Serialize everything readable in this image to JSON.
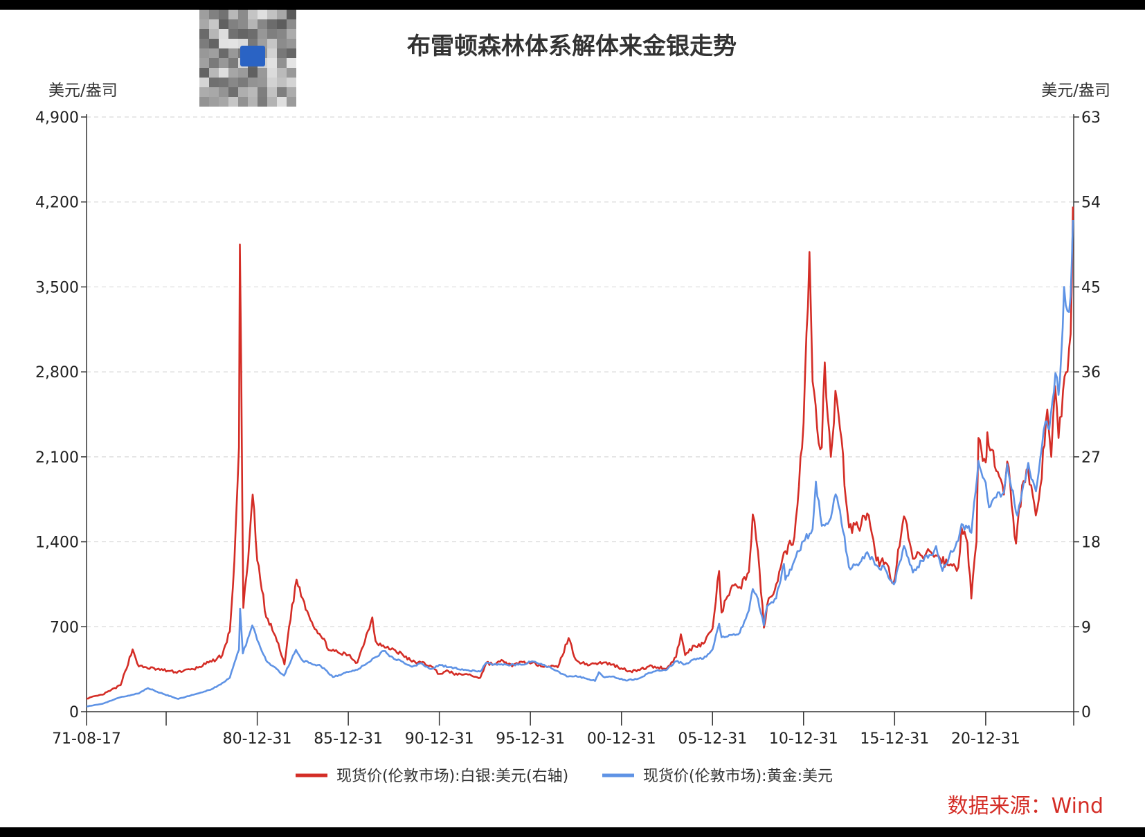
{
  "chart_data": {
    "type": "line",
    "title": "布雷顿森林体系解体来金银走势",
    "left_axis": {
      "unit": "美元/盎司",
      "ylim": [
        0,
        4900
      ],
      "ticks": [
        "0",
        "700",
        "1,400",
        "2,100",
        "2,800",
        "3,500",
        "4,200",
        "4,900"
      ],
      "tick_values": [
        0,
        700,
        1400,
        2100,
        2800,
        3500,
        4200,
        4900
      ]
    },
    "right_axis": {
      "unit": "美元/盎司",
      "ylim": [
        0,
        63
      ],
      "ticks": [
        "0",
        "9",
        "18",
        "27",
        "36",
        "45",
        "54",
        "63"
      ],
      "tick_values": [
        0,
        9,
        18,
        27,
        36,
        45,
        54,
        63
      ]
    },
    "x_axis": {
      "start": "1971-08-17",
      "end": "2025-10-31",
      "tick_labels": [
        "71-08-17",
        "",
        "80-12-31",
        "85-12-31",
        "90-12-31",
        "95-12-31",
        "00-12-31",
        "05-12-31",
        "10-12-31",
        "15-12-31",
        "20-12-31"
      ],
      "tick_dates": [
        "1971-08-17",
        "1975-12-31",
        "1980-12-31",
        "1985-12-31",
        "1990-12-31",
        "1995-12-31",
        "2000-12-31",
        "2005-12-31",
        "2010-12-31",
        "2015-12-31",
        "2020-12-31"
      ]
    },
    "grid": "horizontal-dashed",
    "legend_placement": "bottom-center",
    "series": [
      {
        "name": "现货价(伦敦市场):白银:美元(右轴)",
        "axis": "right",
        "color": "#d42d26",
        "points": [
          [
            "1971-08-17",
            1.4
          ],
          [
            "1972-06-30",
            1.8
          ],
          [
            "1973-06-30",
            2.8
          ],
          [
            "1974-02-26",
            6.6
          ],
          [
            "1974-06-30",
            4.8
          ],
          [
            "1975-06-30",
            4.5
          ],
          [
            "1976-06-30",
            4.2
          ],
          [
            "1977-06-30",
            4.5
          ],
          [
            "1978-06-30",
            5.3
          ],
          [
            "1979-01-31",
            6.0
          ],
          [
            "1979-06-30",
            8.5
          ],
          [
            "1979-09-30",
            16.0
          ],
          [
            "1979-12-31",
            28.0
          ],
          [
            "1980-01-18",
            49.5
          ],
          [
            "1980-02-15",
            35.0
          ],
          [
            "1980-03-27",
            11.0
          ],
          [
            "1980-06-30",
            16.0
          ],
          [
            "1980-09-30",
            23.0
          ],
          [
            "1980-12-31",
            16.0
          ],
          [
            "1981-06-30",
            10.0
          ],
          [
            "1981-12-31",
            8.0
          ],
          [
            "1982-06-30",
            5.0
          ],
          [
            "1982-09-30",
            9.0
          ],
          [
            "1983-02-28",
            14.0
          ],
          [
            "1983-06-30",
            12.0
          ],
          [
            "1983-12-31",
            9.5
          ],
          [
            "1984-06-30",
            8.0
          ],
          [
            "1984-12-31",
            6.5
          ],
          [
            "1985-06-30",
            6.2
          ],
          [
            "1985-12-31",
            6.0
          ],
          [
            "1986-06-30",
            5.2
          ],
          [
            "1987-04-27",
            10.0
          ],
          [
            "1987-06-30",
            7.5
          ],
          [
            "1987-12-31",
            6.8
          ],
          [
            "1988-06-30",
            6.6
          ],
          [
            "1988-12-31",
            6.0
          ],
          [
            "1989-06-30",
            5.3
          ],
          [
            "1989-12-31",
            5.2
          ],
          [
            "1990-06-30",
            4.9
          ],
          [
            "1990-12-31",
            4.0
          ],
          [
            "1991-06-30",
            4.3
          ],
          [
            "1991-12-31",
            3.9
          ],
          [
            "1992-06-30",
            4.0
          ],
          [
            "1992-12-31",
            3.7
          ],
          [
            "1993-03-31",
            3.6
          ],
          [
            "1993-07-31",
            5.2
          ],
          [
            "1993-12-31",
            5.0
          ],
          [
            "1994-06-30",
            5.4
          ],
          [
            "1994-12-31",
            4.8
          ],
          [
            "1995-06-30",
            5.3
          ],
          [
            "1995-12-31",
            5.1
          ],
          [
            "1996-06-30",
            5.0
          ],
          [
            "1996-12-31",
            4.8
          ],
          [
            "1997-06-30",
            4.7
          ],
          [
            "1998-02-05",
            7.8
          ],
          [
            "1998-06-30",
            5.5
          ],
          [
            "1998-12-31",
            5.0
          ],
          [
            "1999-06-30",
            5.1
          ],
          [
            "1999-12-31",
            5.2
          ],
          [
            "2000-06-30",
            5.0
          ],
          [
            "2000-12-31",
            4.6
          ],
          [
            "2001-06-30",
            4.3
          ],
          [
            "2001-12-31",
            4.4
          ],
          [
            "2002-06-30",
            4.8
          ],
          [
            "2002-12-31",
            4.7
          ],
          [
            "2003-06-30",
            4.6
          ],
          [
            "2003-12-31",
            5.8
          ],
          [
            "2004-04-05",
            8.2
          ],
          [
            "2004-06-30",
            6.0
          ],
          [
            "2004-12-31",
            7.0
          ],
          [
            "2005-06-30",
            7.2
          ],
          [
            "2005-12-31",
            8.8
          ],
          [
            "2006-05-12",
            14.9
          ],
          [
            "2006-06-30",
            10.5
          ],
          [
            "2006-12-31",
            13.0
          ],
          [
            "2007-06-30",
            13.2
          ],
          [
            "2007-12-31",
            14.8
          ],
          [
            "2008-03-17",
            20.9
          ],
          [
            "2008-06-30",
            17.0
          ],
          [
            "2008-10-27",
            8.9
          ],
          [
            "2008-12-31",
            11.3
          ],
          [
            "2009-06-30",
            13.5
          ],
          [
            "2009-12-31",
            17.0
          ],
          [
            "2010-06-30",
            18.5
          ],
          [
            "2010-12-31",
            30.6
          ],
          [
            "2011-04-28",
            48.7
          ],
          [
            "2011-06-30",
            35.0
          ],
          [
            "2011-09-30",
            30.0
          ],
          [
            "2011-12-31",
            28.0
          ],
          [
            "2012-02-29",
            37.0
          ],
          [
            "2012-06-30",
            27.0
          ],
          [
            "2012-09-30",
            34.0
          ],
          [
            "2012-12-31",
            30.0
          ],
          [
            "2013-06-30",
            19.5
          ],
          [
            "2013-12-31",
            19.5
          ],
          [
            "2014-06-30",
            21.0
          ],
          [
            "2014-12-31",
            16.0
          ],
          [
            "2015-06-30",
            15.8
          ],
          [
            "2015-12-14",
            13.7
          ],
          [
            "2016-07-05",
            20.7
          ],
          [
            "2016-12-31",
            16.2
          ],
          [
            "2017-06-30",
            16.5
          ],
          [
            "2017-12-31",
            16.9
          ],
          [
            "2018-06-30",
            16.2
          ],
          [
            "2018-12-31",
            15.5
          ],
          [
            "2019-06-30",
            15.3
          ],
          [
            "2019-09-04",
            19.5
          ],
          [
            "2019-12-31",
            17.9
          ],
          [
            "2020-03-18",
            12.0
          ],
          [
            "2020-06-30",
            18.0
          ],
          [
            "2020-08-07",
            29.0
          ],
          [
            "2020-12-31",
            26.4
          ],
          [
            "2021-02-01",
            29.6
          ],
          [
            "2021-06-30",
            26.0
          ],
          [
            "2021-12-31",
            23.0
          ],
          [
            "2022-03-08",
            26.5
          ],
          [
            "2022-09-01",
            17.8
          ],
          [
            "2022-12-31",
            24.0
          ],
          [
            "2023-04-30",
            25.8
          ],
          [
            "2023-10-03",
            20.8
          ],
          [
            "2023-12-31",
            23.8
          ],
          [
            "2024-05-20",
            32.0
          ],
          [
            "2024-08-07",
            27.0
          ],
          [
            "2024-10-22",
            34.5
          ],
          [
            "2024-12-31",
            29.0
          ],
          [
            "2025-03-31",
            34.0
          ],
          [
            "2025-06-30",
            36.0
          ],
          [
            "2025-08-31",
            40.0
          ],
          [
            "2025-10-16",
            53.5
          ]
        ]
      },
      {
        "name": "现货价(伦敦市场):黄金:美元",
        "axis": "left",
        "color": "#5f93e5",
        "points": [
          [
            "1971-08-17",
            43
          ],
          [
            "1972-06-30",
            65
          ],
          [
            "1973-06-30",
            120
          ],
          [
            "1974-06-30",
            150
          ],
          [
            "1974-12-30",
            195
          ],
          [
            "1975-06-30",
            165
          ],
          [
            "1976-08-31",
            105
          ],
          [
            "1977-06-30",
            140
          ],
          [
            "1978-06-30",
            185
          ],
          [
            "1978-12-31",
            225
          ],
          [
            "1979-06-30",
            280
          ],
          [
            "1979-12-31",
            510
          ],
          [
            "1980-01-21",
            850
          ],
          [
            "1980-03-17",
            480
          ],
          [
            "1980-09-22",
            710
          ],
          [
            "1980-12-31",
            590
          ],
          [
            "1981-06-30",
            420
          ],
          [
            "1982-06-21",
            297
          ],
          [
            "1983-02-15",
            510
          ],
          [
            "1983-06-30",
            420
          ],
          [
            "1984-06-30",
            375
          ],
          [
            "1985-02-25",
            285
          ],
          [
            "1985-12-31",
            327
          ],
          [
            "1986-06-30",
            345
          ],
          [
            "1987-06-30",
            450
          ],
          [
            "1987-12-14",
            500
          ],
          [
            "1988-06-30",
            436
          ],
          [
            "1988-12-31",
            410
          ],
          [
            "1989-06-30",
            370
          ],
          [
            "1989-12-31",
            400
          ],
          [
            "1990-06-30",
            352
          ],
          [
            "1990-12-31",
            386
          ],
          [
            "1991-06-30",
            367
          ],
          [
            "1992-06-30",
            343
          ],
          [
            "1993-03-31",
            330
          ],
          [
            "1993-08-02",
            405
          ],
          [
            "1993-12-31",
            390
          ],
          [
            "1994-06-30",
            385
          ],
          [
            "1995-06-30",
            387
          ],
          [
            "1996-02-02",
            415
          ],
          [
            "1996-12-31",
            370
          ],
          [
            "1997-06-30",
            334
          ],
          [
            "1997-12-31",
            290
          ],
          [
            "1998-06-30",
            296
          ],
          [
            "1999-07-20",
            253
          ],
          [
            "1999-10-05",
            325
          ],
          [
            "1999-12-31",
            288
          ],
          [
            "2000-06-30",
            290
          ],
          [
            "2001-04-02",
            256
          ],
          [
            "2001-12-31",
            276
          ],
          [
            "2002-06-30",
            320
          ],
          [
            "2002-12-31",
            343
          ],
          [
            "2003-06-30",
            346
          ],
          [
            "2003-12-31",
            416
          ],
          [
            "2004-06-30",
            390
          ],
          [
            "2004-12-31",
            435
          ],
          [
            "2005-06-30",
            437
          ],
          [
            "2005-12-31",
            513
          ],
          [
            "2006-05-12",
            725
          ],
          [
            "2006-06-30",
            613
          ],
          [
            "2006-12-31",
            632
          ],
          [
            "2007-06-30",
            650
          ],
          [
            "2007-12-31",
            834
          ],
          [
            "2008-03-17",
            1011
          ],
          [
            "2008-06-30",
            930
          ],
          [
            "2008-10-24",
            712
          ],
          [
            "2008-12-31",
            870
          ],
          [
            "2009-06-30",
            935
          ],
          [
            "2009-12-02",
            1218
          ],
          [
            "2009-12-31",
            1087
          ],
          [
            "2010-06-30",
            1244
          ],
          [
            "2010-12-31",
            1405
          ],
          [
            "2011-06-30",
            1505
          ],
          [
            "2011-09-05",
            1895
          ],
          [
            "2011-12-31",
            1531
          ],
          [
            "2012-06-30",
            1598
          ],
          [
            "2012-10-04",
            1791
          ],
          [
            "2012-12-31",
            1657
          ],
          [
            "2013-06-28",
            1192
          ],
          [
            "2013-12-31",
            1204
          ],
          [
            "2014-06-30",
            1315
          ],
          [
            "2014-12-31",
            1206
          ],
          [
            "2015-06-30",
            1171
          ],
          [
            "2015-12-17",
            1049
          ],
          [
            "2016-07-06",
            1366
          ],
          [
            "2016-12-31",
            1146
          ],
          [
            "2017-06-30",
            1242
          ],
          [
            "2017-12-31",
            1291
          ],
          [
            "2018-04-11",
            1365
          ],
          [
            "2018-08-16",
            1160
          ],
          [
            "2018-12-31",
            1279
          ],
          [
            "2019-06-30",
            1409
          ],
          [
            "2019-09-04",
            1546
          ],
          [
            "2019-12-31",
            1515
          ],
          [
            "2020-03-19",
            1474
          ],
          [
            "2020-08-06",
            2067
          ],
          [
            "2020-12-31",
            1887
          ],
          [
            "2021-03-08",
            1683
          ],
          [
            "2021-06-30",
            1763
          ],
          [
            "2021-12-31",
            1806
          ],
          [
            "2022-03-08",
            2039
          ],
          [
            "2022-09-28",
            1615
          ],
          [
            "2022-12-31",
            1814
          ],
          [
            "2023-05-04",
            2050
          ],
          [
            "2023-10-05",
            1815
          ],
          [
            "2023-12-28",
            2078
          ],
          [
            "2024-04-12",
            2390
          ],
          [
            "2024-06-28",
            2327
          ],
          [
            "2024-10-30",
            2790
          ],
          [
            "2024-12-31",
            2610
          ],
          [
            "2025-02-24",
            2950
          ],
          [
            "2025-04-21",
            3500
          ],
          [
            "2025-06-30",
            3300
          ],
          [
            "2025-08-29",
            3420
          ],
          [
            "2025-10-17",
            4050
          ]
        ]
      }
    ],
    "source": "数据来源：Wind"
  }
}
